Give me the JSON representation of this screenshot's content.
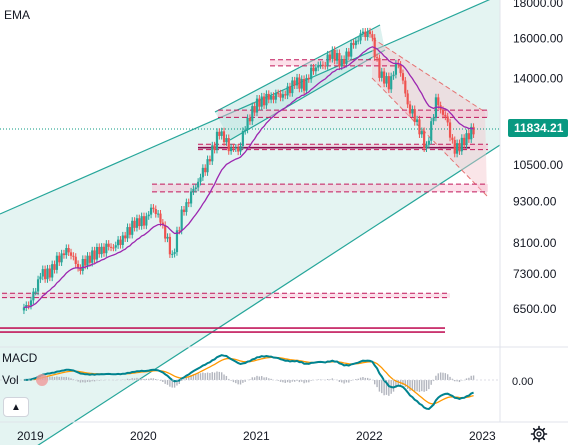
{
  "panes": {
    "price_label": "EMA",
    "macd_label": "MACD",
    "vol_label": "Vol",
    "macd_zero_label": "0.00"
  },
  "price_badge": {
    "value": "11834.21",
    "color": "#089981"
  },
  "colors": {
    "up": "#26a69a",
    "down": "#ef5350",
    "channel": "#26a69a",
    "channel_fill": "#b2dfdb",
    "ema": "#9c27b0",
    "zone_line": "#c2185b",
    "zone_fill": "#f8bbd0",
    "macd_line": "#00838f",
    "signal_line": "#ff9800"
  },
  "icons": {
    "collapse": "chevron-up-icon",
    "settings": "gear-icon"
  },
  "chart_data": {
    "type": "candlestick",
    "title": "",
    "y_scale": "log",
    "y_ticks": [
      "18000.00",
      "16000.00",
      "14000.00",
      "12000.00",
      "10500.00",
      "9300.00",
      "8100.00",
      "7300.00",
      "6500.00"
    ],
    "x_ticks": [
      "2019",
      "2020",
      "2021",
      "2022",
      "2023"
    ],
    "last_price": 11834.21,
    "monthly_close": [
      [
        "2018-12",
        6640
      ],
      [
        "2019-01",
        7280
      ],
      [
        "2019-02",
        7330
      ],
      [
        "2019-03",
        7730
      ],
      [
        "2019-04",
        7940
      ],
      [
        "2019-05",
        7450
      ],
      [
        "2019-06",
        7670
      ],
      [
        "2019-07",
        7850
      ],
      [
        "2019-08",
        7960
      ],
      [
        "2019-09",
        8000
      ],
      [
        "2019-10",
        8290
      ],
      [
        "2019-11",
        8660
      ],
      [
        "2019-12",
        8730
      ],
      [
        "2020-01",
        9150
      ],
      [
        "2020-02",
        8570
      ],
      [
        "2020-03",
        7700
      ],
      [
        "2020-04",
        8890
      ],
      [
        "2020-05",
        9490
      ],
      [
        "2020-06",
        10060
      ],
      [
        "2020-07",
        10740
      ],
      [
        "2020-08",
        11770
      ],
      [
        "2020-09",
        11170
      ],
      [
        "2020-10",
        11050
      ],
      [
        "2020-11",
        12200
      ],
      [
        "2020-12",
        12890
      ],
      [
        "2021-01",
        13070
      ],
      [
        "2021-02",
        13190
      ],
      [
        "2021-03",
        13250
      ],
      [
        "2021-04",
        13860
      ],
      [
        "2021-05",
        13690
      ],
      [
        "2021-06",
        14550
      ],
      [
        "2021-07",
        14670
      ],
      [
        "2021-08",
        15260
      ],
      [
        "2021-09",
        14690
      ],
      [
        "2021-10",
        15500
      ],
      [
        "2021-11",
        16140
      ],
      [
        "2021-12",
        16300
      ],
      [
        "2022-01",
        14240
      ],
      [
        "2022-02",
        13750
      ],
      [
        "2022-03",
        14840
      ],
      [
        "2022-04",
        12850
      ],
      [
        "2022-05",
        12080
      ],
      [
        "2022-06",
        11030
      ],
      [
        "2022-07",
        12950
      ],
      [
        "2022-08",
        12270
      ],
      [
        "2022-09",
        10980
      ],
      [
        "2022-10",
        11400
      ],
      [
        "2022-11",
        11830
      ]
    ],
    "support_lines": [
      6100,
      6020
    ],
    "resistance_zones": [
      [
        6750,
        6850
      ],
      [
        9600,
        9850
      ],
      [
        11050,
        11250
      ],
      [
        12300,
        12600
      ],
      [
        14600,
        14900
      ]
    ],
    "macd_zero": 0.0
  }
}
